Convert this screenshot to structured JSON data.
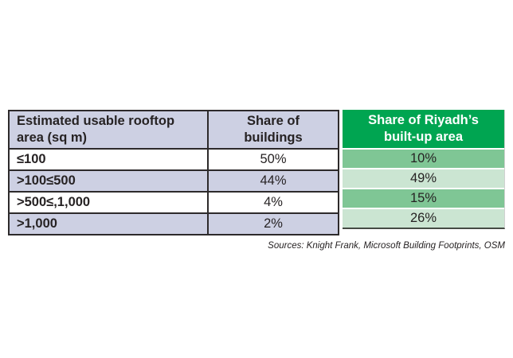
{
  "table": {
    "columns": [
      {
        "label": "Estimated usable rooftop\narea (sq m)"
      },
      {
        "label": "Share of\nbuildings"
      },
      {
        "label": "Share of Riyadh’s\nbuilt-up area"
      }
    ],
    "rows": [
      {
        "range": "≤100",
        "share_buildings": "50%",
        "share_area": "10%"
      },
      {
        "range": ">100≤500",
        "share_buildings": "44%",
        "share_area": "49%"
      },
      {
        "range": ">500≤,1,000",
        "share_buildings": "4%",
        "share_area": "15%"
      },
      {
        "range": ">1,000",
        "share_buildings": "2%",
        "share_area": "26%"
      }
    ]
  },
  "source": "Sources: Knight Frank, Microsoft Building Footprints, OSM",
  "colors": {
    "header_green": "#00a551",
    "row_green_medium": "#7fc695",
    "row_green_light": "#cbe5d2",
    "lavender": "#cdd0e3",
    "border_dark": "#2d2a2b",
    "text": "#262223"
  },
  "chart_data": {
    "type": "table",
    "title": "",
    "columns": [
      "Estimated usable rooftop area (sq m)",
      "Share of buildings",
      "Share of Riyadh’s built-up area"
    ],
    "rows": [
      [
        "≤100",
        "50%",
        "10%"
      ],
      [
        ">100≤500",
        "44%",
        "49%"
      ],
      [
        ">500≤,1,000",
        "4%",
        "15%"
      ],
      [
        ">1,000",
        "2%",
        "26%"
      ]
    ],
    "source": "Sources: Knight Frank, Microsoft Building Footprints, OSM"
  }
}
